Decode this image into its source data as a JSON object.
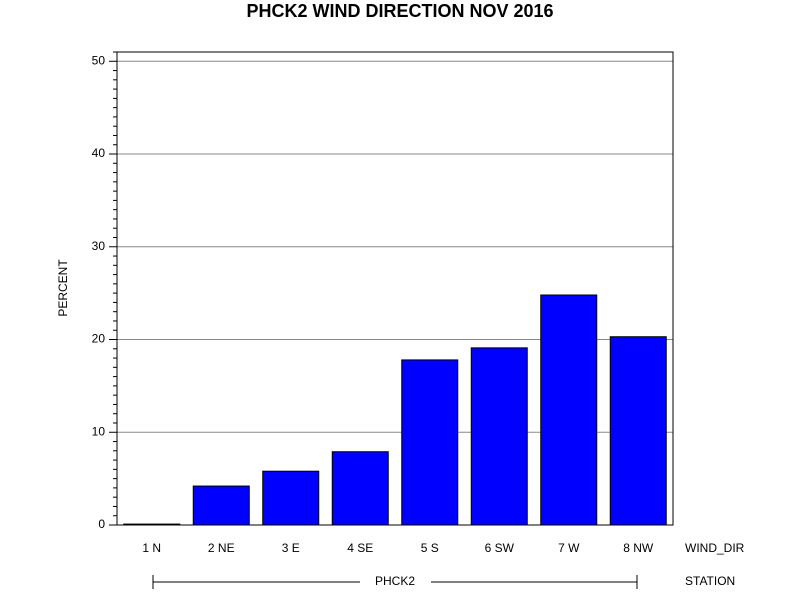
{
  "chart_data": {
    "type": "bar",
    "title": "PHCK2 WIND DIRECTION NOV 2016",
    "y_label": "PERCENT",
    "x_label": "WIND_DIR",
    "group_label": "STATION",
    "group": "PHCK2",
    "categories": [
      "1 N",
      "2 NE",
      "3 E",
      "4 SE",
      "5 S",
      "6 SW",
      "7 W",
      "8 NW"
    ],
    "values": [
      0.1,
      4.2,
      5.8,
      7.9,
      17.8,
      19.1,
      24.8,
      20.3
    ],
    "color": "#0000ff",
    "ylim": [
      0,
      51
    ],
    "yticks": [
      0,
      10,
      20,
      30,
      40,
      50
    ],
    "yminorticks": [
      1,
      2,
      3,
      4,
      5,
      6,
      7,
      8,
      9,
      11,
      12,
      13,
      14,
      15,
      16,
      17,
      18,
      19,
      21,
      22,
      23,
      24,
      25,
      26,
      27,
      28,
      29,
      31,
      32,
      33,
      34,
      35,
      36,
      37,
      38,
      39,
      41,
      42,
      43,
      44,
      45,
      46,
      47,
      48,
      49,
      51
    ],
    "grid": true
  }
}
